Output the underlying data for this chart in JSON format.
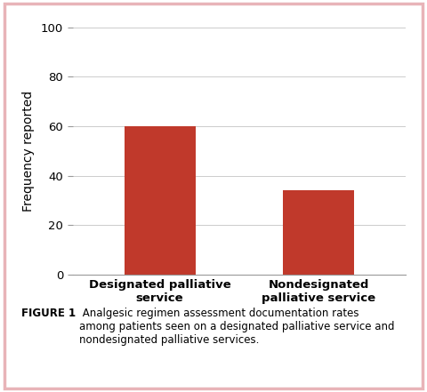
{
  "categories": [
    "Designated palliative\nservice",
    "Nondesignated\npalliative service"
  ],
  "values": [
    60,
    34
  ],
  "bar_color": "#c0392b",
  "ylabel": "Frequency reported",
  "ylim": [
    0,
    100
  ],
  "yticks": [
    0,
    20,
    40,
    60,
    80,
    100
  ],
  "bar_width": 0.45,
  "background_color": "#ffffff",
  "figure_caption_bold": "FIGURE 1",
  "figure_caption_regular": " Analgesic regimen assessment documentation rates\namong patients seen on a designated palliative service and\nnondesignated palliative services.",
  "outer_border_color": "#e8b4b8",
  "tick_label_fontsize": 9.5,
  "ylabel_fontsize": 10,
  "caption_fontsize": 8.5,
  "grid_color": "#cccccc",
  "spine_color": "#999999"
}
